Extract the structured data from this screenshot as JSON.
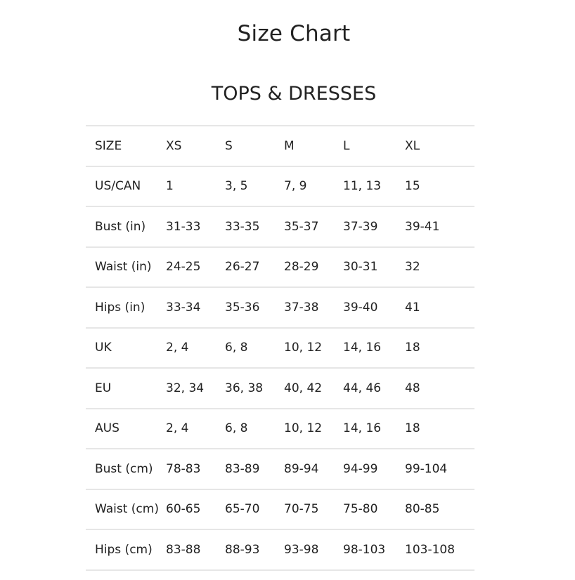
{
  "title": "Size Chart",
  "section_title": "TOPS & DRESSES",
  "table": {
    "header": [
      "SIZE",
      "XS",
      "S",
      "M",
      "L",
      "XL"
    ],
    "rows": [
      [
        "US/CAN",
        "1",
        "3, 5",
        "7, 9",
        "11, 13",
        "15"
      ],
      [
        "Bust (in)",
        "31-33",
        "33-35",
        "35-37",
        "37-39",
        "39-41"
      ],
      [
        "Waist (in)",
        "24-25",
        "26-27",
        "28-29",
        "30-31",
        "32"
      ],
      [
        "Hips (in)",
        "33-34",
        "35-36",
        "37-38",
        "39-40",
        "41"
      ],
      [
        "UK",
        "2, 4",
        "6, 8",
        "10, 12",
        "14, 16",
        "18"
      ],
      [
        "EU",
        "32, 34",
        "36, 38",
        "40, 42",
        "44, 46",
        "48"
      ],
      [
        "AUS",
        "2, 4",
        "6, 8",
        "10, 12",
        "14, 16",
        "18"
      ],
      [
        "Bust (cm)",
        "78-83",
        "83-89",
        "89-94",
        "94-99",
        "99-104"
      ],
      [
        "Waist (cm)",
        "60-65",
        "65-70",
        "70-75",
        "75-80",
        "80-85"
      ],
      [
        "Hips (cm)",
        "83-88",
        "88-93",
        "93-98",
        "98-103",
        "103-108"
      ]
    ]
  }
}
